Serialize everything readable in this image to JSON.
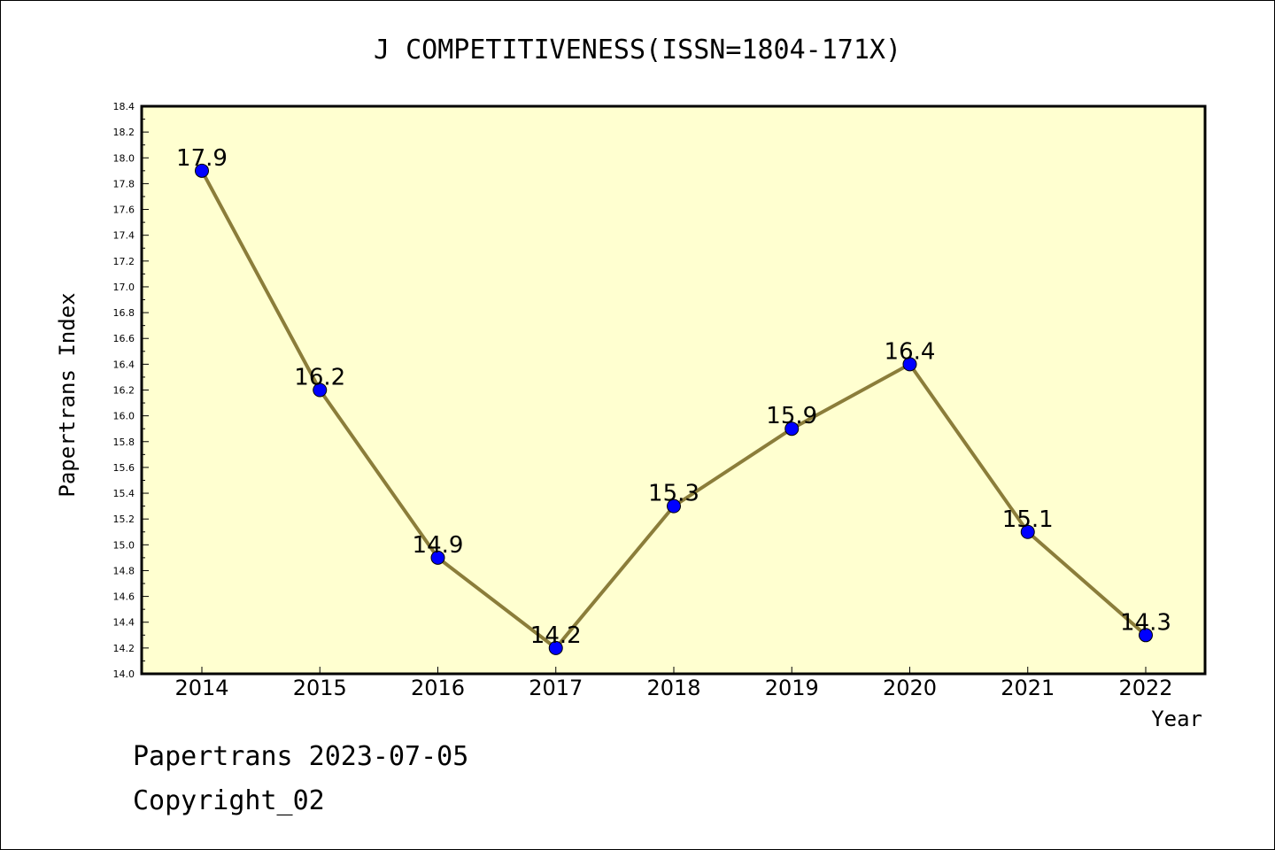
{
  "chart_data": {
    "type": "line",
    "title": "J COMPETITIVENESS(ISSN=1804-171X)",
    "xlabel": "Year",
    "ylabel": "Papertrans Index",
    "categories": [
      "2014",
      "2015",
      "2016",
      "2017",
      "2018",
      "2019",
      "2020",
      "2021",
      "2022"
    ],
    "values": [
      17.9,
      16.2,
      14.9,
      14.2,
      15.3,
      15.9,
      16.4,
      15.1,
      14.3
    ],
    "data_labels": [
      "17.9",
      "16.2",
      "14.9",
      "14.2",
      "15.3",
      "15.9",
      "16.4",
      "15.1",
      "14.3"
    ],
    "ylim": [
      14.0,
      18.4
    ],
    "yticks": [
      "14.0",
      "14.2",
      "14.4",
      "14.6",
      "14.8",
      "15.0",
      "15.2",
      "15.4",
      "15.6",
      "15.8",
      "16.0",
      "16.2",
      "16.4",
      "16.6",
      "16.8",
      "17.0",
      "17.2",
      "17.4",
      "17.6",
      "17.8",
      "18.0",
      "18.2",
      "18.4"
    ],
    "grid": false,
    "legend": "none",
    "colors": {
      "plot_background": "#ffffd0",
      "line": "#8b7d3a",
      "marker": "#0000ff"
    }
  },
  "footer": {
    "line1": "Papertrans 2023-07-05",
    "line2": "Copyright_02"
  }
}
